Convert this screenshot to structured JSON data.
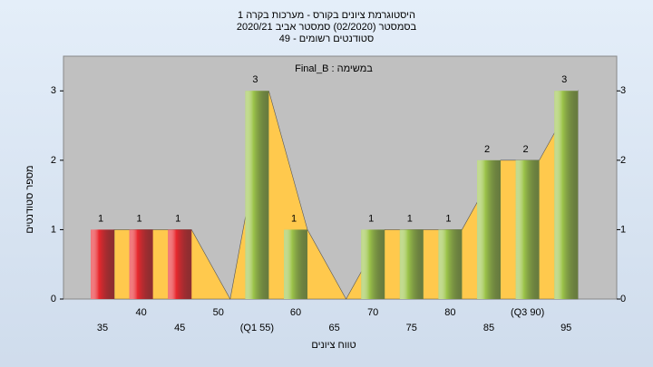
{
  "chart_data": {
    "type": "bar",
    "title": "היסטוגרמת ציונים בקורס - מערכות בקרה 1",
    "subtitle": "בסמסטר  (02/2020)  סמסטר אביב 2020/21",
    "subtitle2": "סטודנטים רשומים - 49",
    "annotation": "Final_B : במשימה",
    "y_label": "מספר סטודנטים",
    "x_label": "טווח ציונים",
    "categories": [
      "35",
      "40",
      "45",
      "50",
      "(Q1 55)",
      "60",
      "65",
      "70",
      "75",
      "80",
      "85",
      "(Q3 90)",
      "95"
    ],
    "values": [
      1,
      1,
      1,
      0,
      3,
      1,
      0,
      1,
      1,
      1,
      2,
      2,
      3
    ],
    "colors": [
      "#e8282e",
      "#e8282e",
      "#e8282e",
      "#9cc44a",
      "#9cc44a",
      "#9cc44a",
      "#9cc44a",
      "#9cc44a",
      "#9cc44a",
      "#9cc44a",
      "#9cc44a",
      "#9cc44a",
      "#9cc44a"
    ],
    "area_color": "#ffc94d",
    "ylim": [
      0,
      3.5
    ],
    "yticks": [
      0,
      1,
      2,
      3
    ]
  }
}
